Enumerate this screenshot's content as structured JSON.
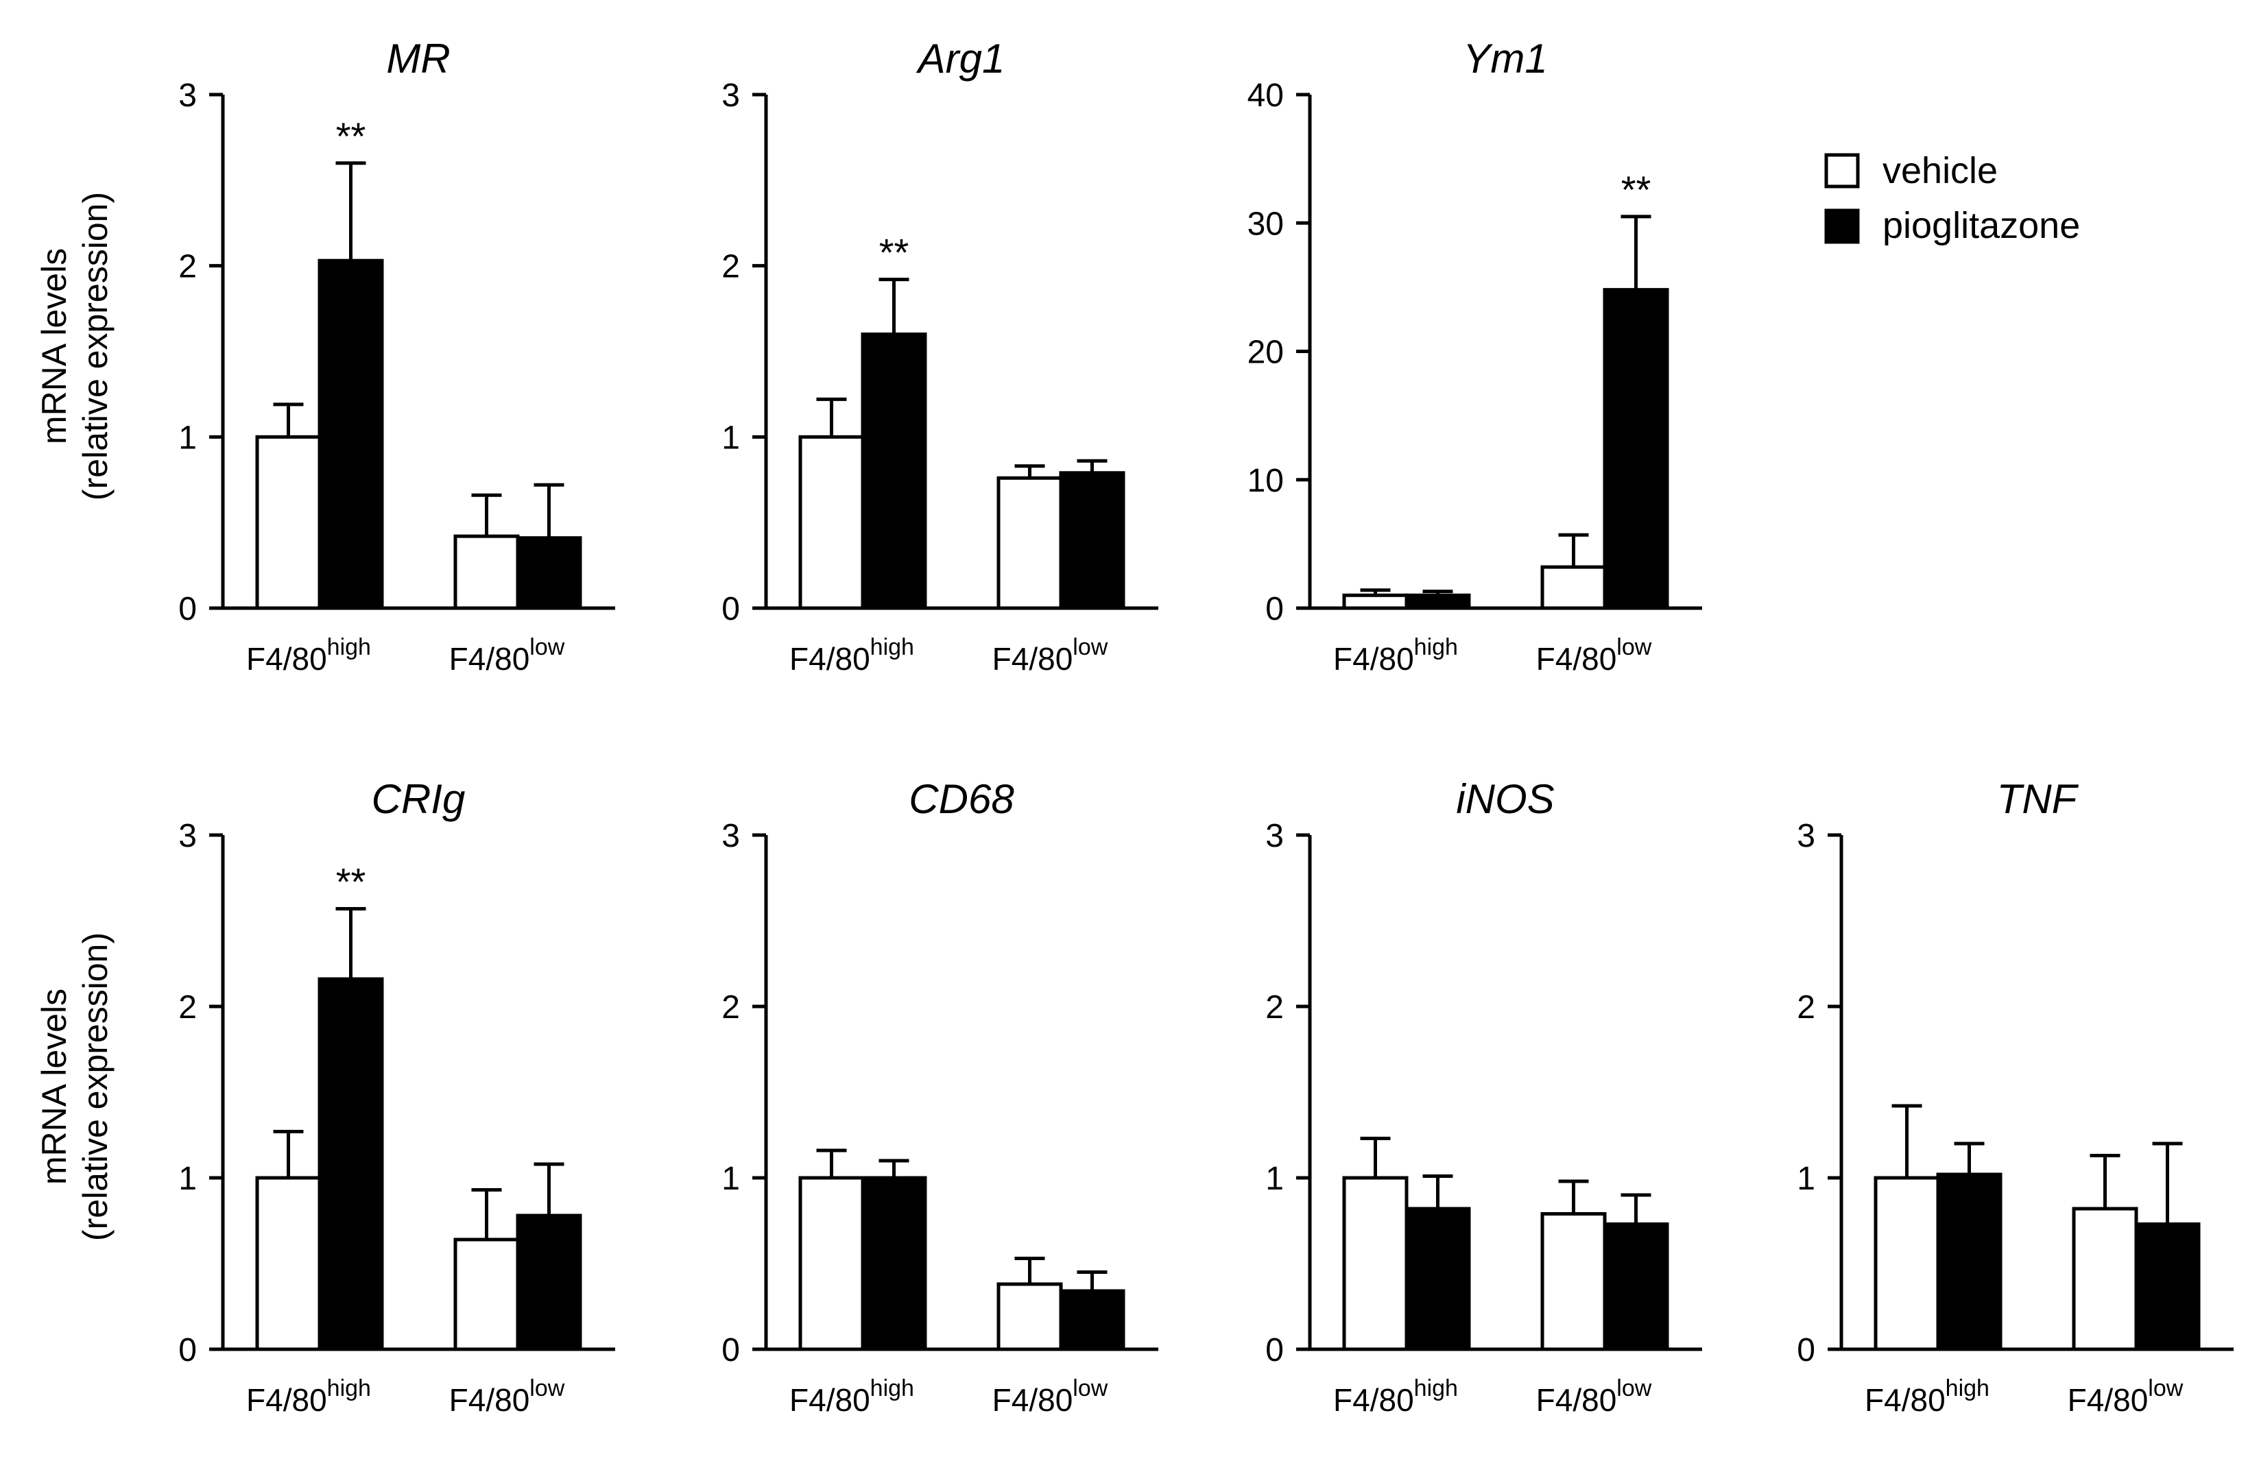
{
  "figure": {
    "y_axis_label_line1": "mRNA levels",
    "y_axis_label_line2": "(relative expression)",
    "legend": [
      {
        "label": "vehicle",
        "fill": "#ffffff"
      },
      {
        "label": "pioglitazone",
        "fill": "#000000"
      }
    ],
    "colors": {
      "vehicle": "#ffffff",
      "pioglitazone": "#000000",
      "axis": "#000000"
    }
  },
  "chart_data": [
    {
      "type": "bar",
      "title": "MR",
      "ylim": [
        0,
        3
      ],
      "yticks": [
        "0",
        "1",
        "2",
        "3"
      ],
      "categories": [
        {
          "base": "F4/80",
          "sup": "high"
        },
        {
          "base": "F4/80",
          "sup": "low"
        }
      ],
      "series": [
        {
          "name": "vehicle",
          "values": [
            1.0,
            0.42
          ],
          "errors": [
            0.19,
            0.24
          ]
        },
        {
          "name": "pioglitazone",
          "values": [
            2.03,
            0.41
          ],
          "errors": [
            0.57,
            0.31
          ]
        }
      ],
      "annotations": [
        {
          "series": "pioglitazone",
          "category": 0,
          "text": "**"
        }
      ]
    },
    {
      "type": "bar",
      "title": "Arg1",
      "ylim": [
        0,
        3
      ],
      "yticks": [
        "0",
        "1",
        "2",
        "3"
      ],
      "categories": [
        {
          "base": "F4/80",
          "sup": "high"
        },
        {
          "base": "F4/80",
          "sup": "low"
        }
      ],
      "series": [
        {
          "name": "vehicle",
          "values": [
            1.0,
            0.76
          ],
          "errors": [
            0.22,
            0.07
          ]
        },
        {
          "name": "pioglitazone",
          "values": [
            1.6,
            0.79
          ],
          "errors": [
            0.32,
            0.07
          ]
        }
      ],
      "annotations": [
        {
          "series": "pioglitazone",
          "category": 0,
          "text": "**"
        }
      ]
    },
    {
      "type": "bar",
      "title": "Ym1",
      "ylim": [
        0,
        40
      ],
      "yticks": [
        "0",
        "10",
        "20",
        "30",
        "40"
      ],
      "categories": [
        {
          "base": "F4/80",
          "sup": "high"
        },
        {
          "base": "F4/80",
          "sup": "low"
        }
      ],
      "series": [
        {
          "name": "vehicle",
          "values": [
            1.0,
            3.2
          ],
          "errors": [
            0.4,
            2.5
          ]
        },
        {
          "name": "pioglitazone",
          "values": [
            1.0,
            24.8
          ],
          "errors": [
            0.3,
            5.7
          ]
        }
      ],
      "annotations": [
        {
          "series": "pioglitazone",
          "category": 1,
          "text": "**"
        }
      ]
    },
    {
      "type": "bar",
      "title": "CRIg",
      "ylim": [
        0,
        3
      ],
      "yticks": [
        "0",
        "1",
        "2",
        "3"
      ],
      "categories": [
        {
          "base": "F4/80",
          "sup": "high"
        },
        {
          "base": "F4/80",
          "sup": "low"
        }
      ],
      "series": [
        {
          "name": "vehicle",
          "values": [
            1.0,
            0.64
          ],
          "errors": [
            0.27,
            0.29
          ]
        },
        {
          "name": "pioglitazone",
          "values": [
            2.16,
            0.78
          ],
          "errors": [
            0.41,
            0.3
          ]
        }
      ],
      "annotations": [
        {
          "series": "pioglitazone",
          "category": 0,
          "text": "**"
        }
      ]
    },
    {
      "type": "bar",
      "title": "CD68",
      "ylim": [
        0,
        3
      ],
      "yticks": [
        "0",
        "1",
        "2",
        "3"
      ],
      "categories": [
        {
          "base": "F4/80",
          "sup": "high"
        },
        {
          "base": "F4/80",
          "sup": "low"
        }
      ],
      "series": [
        {
          "name": "vehicle",
          "values": [
            1.0,
            0.38
          ],
          "errors": [
            0.16,
            0.15
          ]
        },
        {
          "name": "pioglitazone",
          "values": [
            1.0,
            0.34
          ],
          "errors": [
            0.1,
            0.11
          ]
        }
      ],
      "annotations": []
    },
    {
      "type": "bar",
      "title": "iNOS",
      "ylim": [
        0,
        3
      ],
      "yticks": [
        "0",
        "1",
        "2",
        "3"
      ],
      "categories": [
        {
          "base": "F4/80",
          "sup": "high"
        },
        {
          "base": "F4/80",
          "sup": "low"
        }
      ],
      "series": [
        {
          "name": "vehicle",
          "values": [
            1.0,
            0.79
          ],
          "errors": [
            0.23,
            0.19
          ]
        },
        {
          "name": "pioglitazone",
          "values": [
            0.82,
            0.73
          ],
          "errors": [
            0.19,
            0.17
          ]
        }
      ],
      "annotations": []
    },
    {
      "type": "bar",
      "title": "TNF",
      "ylim": [
        0,
        3
      ],
      "yticks": [
        "0",
        "1",
        "2",
        "3"
      ],
      "categories": [
        {
          "base": "F4/80",
          "sup": "high"
        },
        {
          "base": "F4/80",
          "sup": "low"
        }
      ],
      "series": [
        {
          "name": "vehicle",
          "values": [
            1.0,
            0.82
          ],
          "errors": [
            0.42,
            0.31
          ]
        },
        {
          "name": "pioglitazone",
          "values": [
            1.02,
            0.73
          ],
          "errors": [
            0.18,
            0.47
          ]
        }
      ],
      "annotations": []
    }
  ]
}
